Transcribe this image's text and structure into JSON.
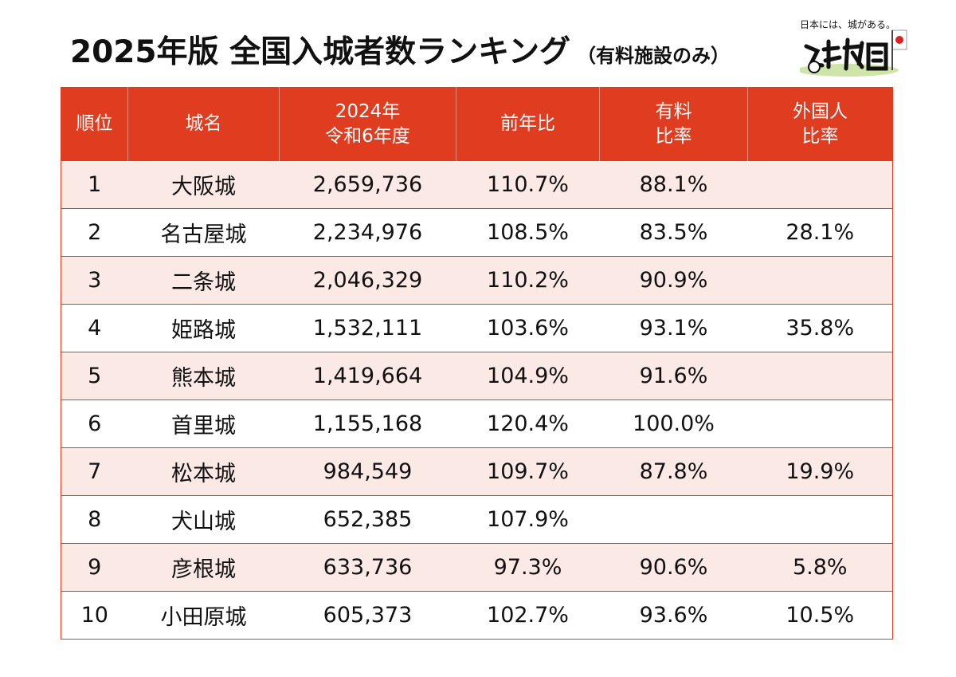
{
  "title": "2025年版 全国入城者数ランキング",
  "subtitle": "（有料施設のみ）",
  "logo": {
    "caption": "日本には、城がある。",
    "mark_text": "攻城団"
  },
  "colors": {
    "header_bg": "#e03c20",
    "row_tint": "#fbe9e5",
    "negative": "#e02020"
  },
  "table": {
    "headers": [
      {
        "lines": [
          "順位"
        ]
      },
      {
        "lines": [
          "城名"
        ]
      },
      {
        "lines": [
          "2024年",
          "令和6年度"
        ]
      },
      {
        "lines": [
          "前年比"
        ]
      },
      {
        "lines": [
          "有料",
          "比率"
        ]
      },
      {
        "lines": [
          "外国人",
          "比率"
        ]
      }
    ],
    "rows": [
      {
        "rank": "1",
        "name": "大阪城",
        "visitors": "2,659,736",
        "yoy": "110.7%",
        "paid": "88.1%",
        "foreign": ""
      },
      {
        "rank": "2",
        "name": "名古屋城",
        "visitors": "2,234,976",
        "yoy": "108.5%",
        "paid": "83.5%",
        "foreign": "28.1%"
      },
      {
        "rank": "3",
        "name": "二条城",
        "visitors": "2,046,329",
        "yoy": "110.2%",
        "paid": "90.9%",
        "foreign": ""
      },
      {
        "rank": "4",
        "name": "姫路城",
        "visitors": "1,532,111",
        "yoy": "103.6%",
        "paid": "93.1%",
        "foreign": "35.8%"
      },
      {
        "rank": "5",
        "name": "熊本城",
        "visitors": "1,419,664",
        "yoy": "104.9%",
        "paid": "91.6%",
        "foreign": ""
      },
      {
        "rank": "6",
        "name": "首里城",
        "visitors": "1,155,168",
        "yoy": "120.4%",
        "paid": "100.0%",
        "foreign": ""
      },
      {
        "rank": "7",
        "name": "松本城",
        "visitors": "984,549",
        "yoy": "109.7%",
        "paid": "87.8%",
        "foreign": "19.9%"
      },
      {
        "rank": "8",
        "name": "犬山城",
        "visitors": "652,385",
        "yoy": "107.9%",
        "paid": "",
        "foreign": ""
      },
      {
        "rank": "9",
        "name": "彦根城",
        "visitors": "633,736",
        "yoy": "97.3%",
        "yoy_negative": true,
        "paid": "90.6%",
        "foreign": "5.8%"
      },
      {
        "rank": "10",
        "name": "小田原城",
        "visitors": "605,373",
        "yoy": "102.7%",
        "paid": "93.6%",
        "foreign": "10.5%"
      }
    ]
  }
}
